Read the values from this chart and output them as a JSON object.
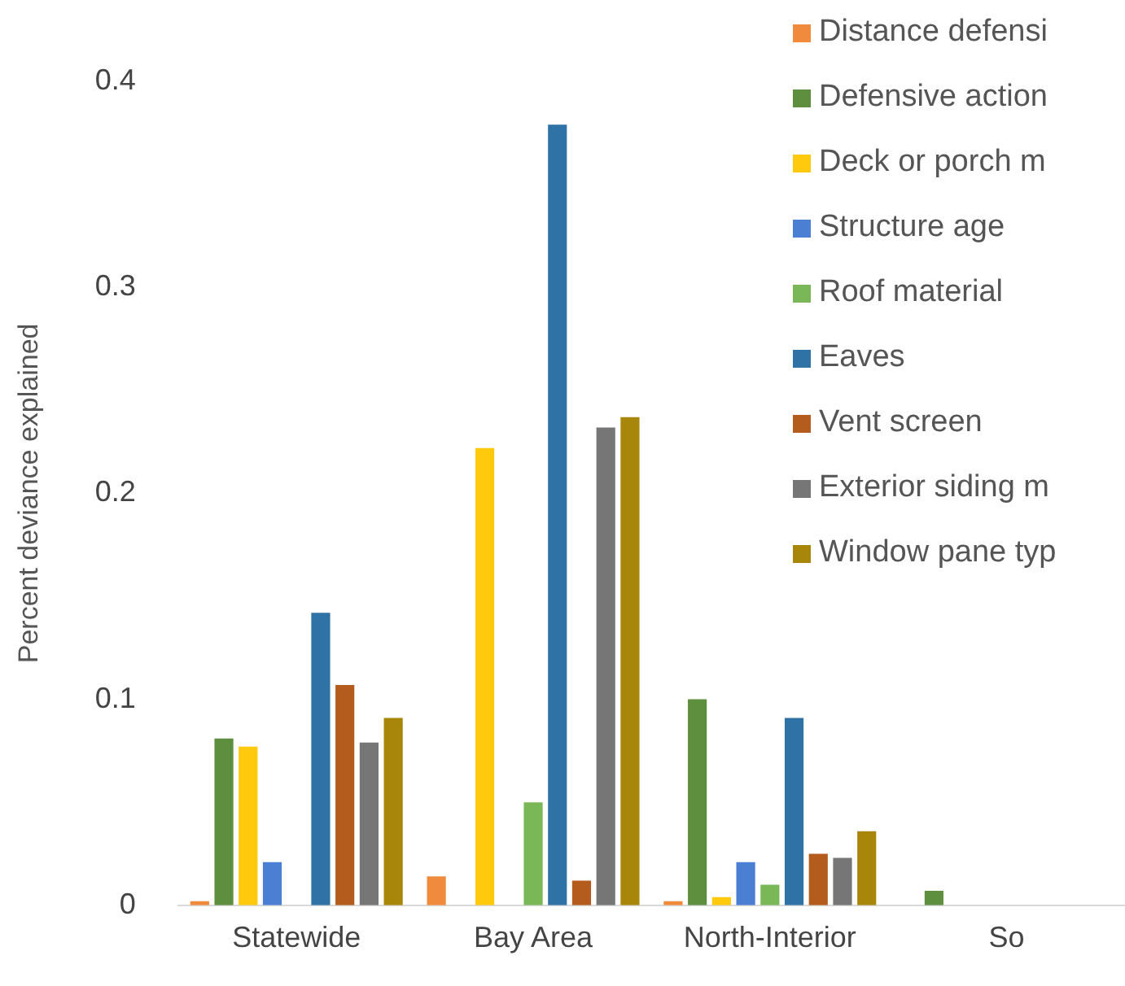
{
  "chart_data": {
    "type": "bar",
    "ylabel": "Percent deviance explained",
    "categories": [
      "Statewide",
      "Bay Area",
      "North-Interior",
      "So"
    ],
    "series": [
      {
        "name": "Distance defensi",
        "color": "#f08a3c",
        "values": [
          0.002,
          0.014,
          0.002,
          0
        ]
      },
      {
        "name": "Defensive action",
        "color": "#5e8f3e",
        "values": [
          0.081,
          0,
          0.1,
          0.007
        ]
      },
      {
        "name": "Deck or porch m",
        "color": "#ffc90e",
        "values": [
          0.077,
          0.222,
          0.004,
          null
        ]
      },
      {
        "name": "Structure age",
        "color": "#4a7fd4",
        "values": [
          0.021,
          0,
          0.021,
          null
        ]
      },
      {
        "name": "Roof material",
        "color": "#7ab857",
        "values": [
          0,
          0.05,
          0.01,
          null
        ]
      },
      {
        "name": "Eaves",
        "color": "#2e72a6",
        "values": [
          0.142,
          0.379,
          0.091,
          null
        ]
      },
      {
        "name": "Vent screen",
        "color": "#b35c1e",
        "values": [
          0.107,
          0.012,
          0.025,
          null
        ]
      },
      {
        "name": "Exterior siding m",
        "color": "#767676",
        "values": [
          0.079,
          0.232,
          0.023,
          null
        ]
      },
      {
        "name": "Window pane typ",
        "color": "#a8860a",
        "values": [
          0.091,
          0.237,
          0.036,
          null
        ]
      }
    ],
    "ylim": [
      0,
      0.4
    ],
    "yticks": [
      0,
      0.1,
      0.2,
      0.3,
      0.4
    ],
    "grid": false,
    "legend": "top right"
  }
}
